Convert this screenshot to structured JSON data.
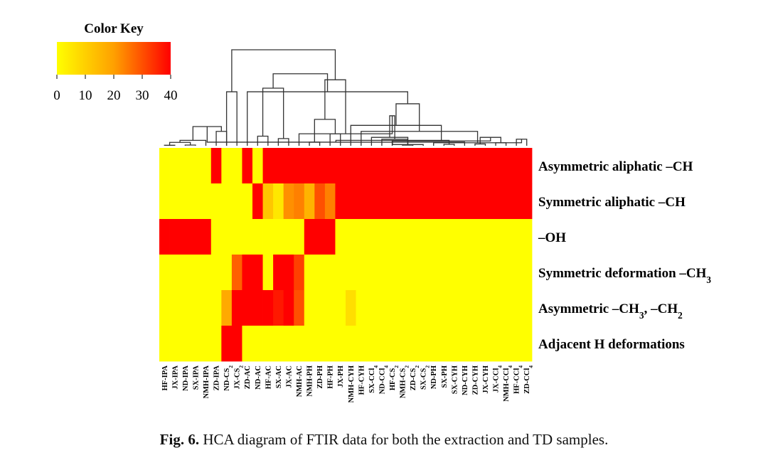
{
  "chart_data": {
    "type": "heatmap",
    "color_key": {
      "title": "Color Key",
      "ticks": [
        "0",
        "10",
        "20",
        "30",
        "40"
      ],
      "range": [
        0,
        40
      ]
    },
    "colors": {
      "low": "#ffff00",
      "mid": "#ffa000",
      "high": "#ff0000",
      "line": "#333333"
    },
    "rows": [
      {
        "parts": [
          {
            "t": "Asymmetric aliphatic –CH"
          }
        ]
      },
      {
        "parts": [
          {
            "t": "Symmetric aliphatic –CH"
          }
        ]
      },
      {
        "parts": [
          {
            "t": "–OH"
          }
        ]
      },
      {
        "parts": [
          {
            "t": "Symmetric deformation –CH"
          },
          {
            "t": "3",
            "sub": true
          }
        ]
      },
      {
        "parts": [
          {
            "t": "Asymmetric –CH"
          },
          {
            "t": "3",
            "sub": true
          },
          {
            "t": ", –CH"
          },
          {
            "t": "2",
            "sub": true
          }
        ]
      },
      {
        "parts": [
          {
            "t": "Adjacent H deformations"
          }
        ]
      }
    ],
    "columns": [
      [
        {
          "t": "HF-IPA"
        }
      ],
      [
        {
          "t": "JX-IPA"
        }
      ],
      [
        {
          "t": "ND-IPA"
        }
      ],
      [
        {
          "t": "SX-IPA"
        }
      ],
      [
        {
          "t": "NMH-IPA"
        }
      ],
      [
        {
          "t": "ZD-IPA"
        }
      ],
      [
        {
          "t": "ND-CS"
        },
        {
          "t": "2",
          "sub": true
        }
      ],
      [
        {
          "t": "JX-CS"
        },
        {
          "t": "2",
          "sub": true
        }
      ],
      [
        {
          "t": "ZD-AC"
        }
      ],
      [
        {
          "t": "ND-AC"
        }
      ],
      [
        {
          "t": "HF-AC"
        }
      ],
      [
        {
          "t": "SX-AC"
        }
      ],
      [
        {
          "t": "JX-AC"
        }
      ],
      [
        {
          "t": "NMH-AC"
        }
      ],
      [
        {
          "t": "NMH-PH"
        }
      ],
      [
        {
          "t": "ZD-PH"
        }
      ],
      [
        {
          "t": "HF-PH"
        }
      ],
      [
        {
          "t": "JX-PH"
        }
      ],
      [
        {
          "t": "NMH-CYH"
        }
      ],
      [
        {
          "t": "HF-CYH"
        }
      ],
      [
        {
          "t": "SX-CCl"
        },
        {
          "t": "4",
          "sub": true
        }
      ],
      [
        {
          "t": "ND-CCl"
        },
        {
          "t": "4",
          "sub": true
        }
      ],
      [
        {
          "t": "HF-CS"
        },
        {
          "t": "2",
          "sub": true
        }
      ],
      [
        {
          "t": "NMH-CS"
        },
        {
          "t": "2",
          "sub": true
        }
      ],
      [
        {
          "t": "ZD-CS"
        },
        {
          "t": "2",
          "sub": true
        }
      ],
      [
        {
          "t": "SX-CS"
        },
        {
          "t": "2",
          "sub": true
        }
      ],
      [
        {
          "t": "ND-PH"
        }
      ],
      [
        {
          "t": "SX-PH"
        }
      ],
      [
        {
          "t": "SX-CYH"
        }
      ],
      [
        {
          "t": "ND-CYH"
        }
      ],
      [
        {
          "t": "ZD-CYH"
        }
      ],
      [
        {
          "t": "JX-CYH"
        }
      ],
      [
        {
          "t": "JX-CCl"
        },
        {
          "t": "4",
          "sub": true
        }
      ],
      [
        {
          "t": "NMH-CCl"
        },
        {
          "t": "4",
          "sub": true
        }
      ],
      [
        {
          "t": "HF-CCl"
        },
        {
          "t": "4",
          "sub": true
        }
      ],
      [
        {
          "t": "ZD-CCl"
        },
        {
          "t": "4",
          "sub": true
        }
      ]
    ],
    "values": [
      [
        0,
        0,
        0,
        0,
        0,
        40,
        0,
        0,
        40,
        0,
        40,
        40,
        40,
        40,
        40,
        40,
        40,
        40,
        40,
        40,
        40,
        40,
        40,
        40,
        40,
        40,
        40,
        40,
        40,
        40,
        40,
        40,
        40,
        40,
        40,
        40
      ],
      [
        0,
        0,
        0,
        0,
        0,
        0,
        0,
        0,
        0,
        40,
        12,
        5,
        22,
        24,
        16,
        30,
        24,
        40,
        40,
        40,
        40,
        40,
        40,
        40,
        40,
        40,
        40,
        40,
        40,
        40,
        40,
        40,
        40,
        40,
        40,
        40
      ],
      [
        40,
        40,
        40,
        40,
        40,
        0,
        0,
        0,
        0,
        0,
        0,
        0,
        0,
        0,
        40,
        40,
        40,
        0,
        0,
        0,
        0,
        0,
        0,
        0,
        0,
        0,
        0,
        0,
        0,
        0,
        0,
        0,
        0,
        0,
        0,
        0
      ],
      [
        0,
        0,
        0,
        0,
        0,
        0,
        0,
        28,
        40,
        40,
        0,
        40,
        40,
        32,
        0,
        0,
        0,
        0,
        0,
        0,
        0,
        0,
        0,
        0,
        0,
        0,
        0,
        0,
        0,
        0,
        0,
        0,
        0,
        0,
        0,
        0
      ],
      [
        0,
        0,
        0,
        0,
        0,
        0,
        18,
        40,
        40,
        40,
        40,
        37,
        40,
        30,
        0,
        0,
        0,
        0,
        7,
        0,
        0,
        0,
        0,
        0,
        0,
        0,
        0,
        0,
        0,
        0,
        0,
        0,
        0,
        0,
        0,
        0
      ],
      [
        0,
        0,
        0,
        0,
        0,
        0,
        40,
        40,
        0,
        0,
        0,
        0,
        0,
        0,
        0,
        0,
        0,
        0,
        0,
        0,
        0,
        0,
        0,
        0,
        0,
        0,
        0,
        0,
        0,
        0,
        0,
        0,
        0,
        0,
        0,
        0
      ]
    ],
    "column_dendrogram": [
      [
        0,
        1,
        0.4
      ],
      [
        2,
        3,
        0.6
      ],
      [
        36,
        37,
        2.8
      ],
      [
        38,
        4,
        4.5
      ],
      [
        5,
        6,
        12
      ],
      [
        39,
        40,
        16
      ],
      [
        27,
        28,
        1.2
      ],
      [
        41,
        29,
        3
      ],
      [
        30,
        31,
        1.5
      ],
      [
        32,
        33,
        2.5
      ],
      [
        42,
        43,
        4.5
      ],
      [
        34,
        35,
        5.5
      ],
      [
        44,
        45,
        7
      ],
      [
        23,
        24,
        0.5
      ],
      [
        46,
        25,
        1
      ],
      [
        47,
        26,
        2.5
      ],
      [
        22,
        48,
        4
      ],
      [
        21,
        49,
        5.5
      ],
      [
        20,
        50,
        7
      ],
      [
        19,
        51,
        12
      ],
      [
        18,
        52,
        17
      ],
      [
        14,
        15,
        3
      ],
      [
        53,
        54,
        25
      ],
      [
        16,
        17,
        10
      ],
      [
        55,
        56,
        35
      ],
      [
        9,
        10,
        8
      ],
      [
        11,
        12,
        6
      ],
      [
        58,
        13,
        10
      ],
      [
        57,
        59,
        22
      ],
      [
        8,
        60,
        45
      ],
      [
        61,
        62,
        48
      ],
      [
        6,
        7,
        45
      ],
      [
        63,
        64,
        55
      ],
      [
        65,
        66,
        60
      ],
      [
        67,
        68,
        80
      ]
    ],
    "caption_label": "Fig. 6.",
    "caption_text": "HCA diagram of FTIR data for both the extraction and TD samples."
  }
}
